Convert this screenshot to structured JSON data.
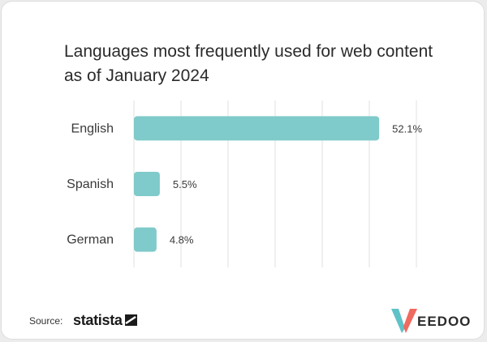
{
  "chart_data": {
    "type": "bar",
    "orientation": "horizontal",
    "title": "Languages most frequently used for web content as of January 2024",
    "categories": [
      "English",
      "Spanish",
      "German"
    ],
    "values": [
      52.1,
      5.5,
      4.8
    ],
    "value_labels": [
      "52.1%",
      "5.5%",
      "4.8%"
    ],
    "unit": "%",
    "xlim": [
      0,
      60
    ],
    "grid": true,
    "bar_color": "#7fcaca",
    "gridline_color": "#e2e2e2"
  },
  "footer": {
    "source_label": "Source:",
    "source_name": "statista",
    "brand_prefix": "V",
    "brand_name": "EEDOO",
    "brand_colors": {
      "teal": "#5fc2c6",
      "coral": "#ef6a5f"
    }
  }
}
